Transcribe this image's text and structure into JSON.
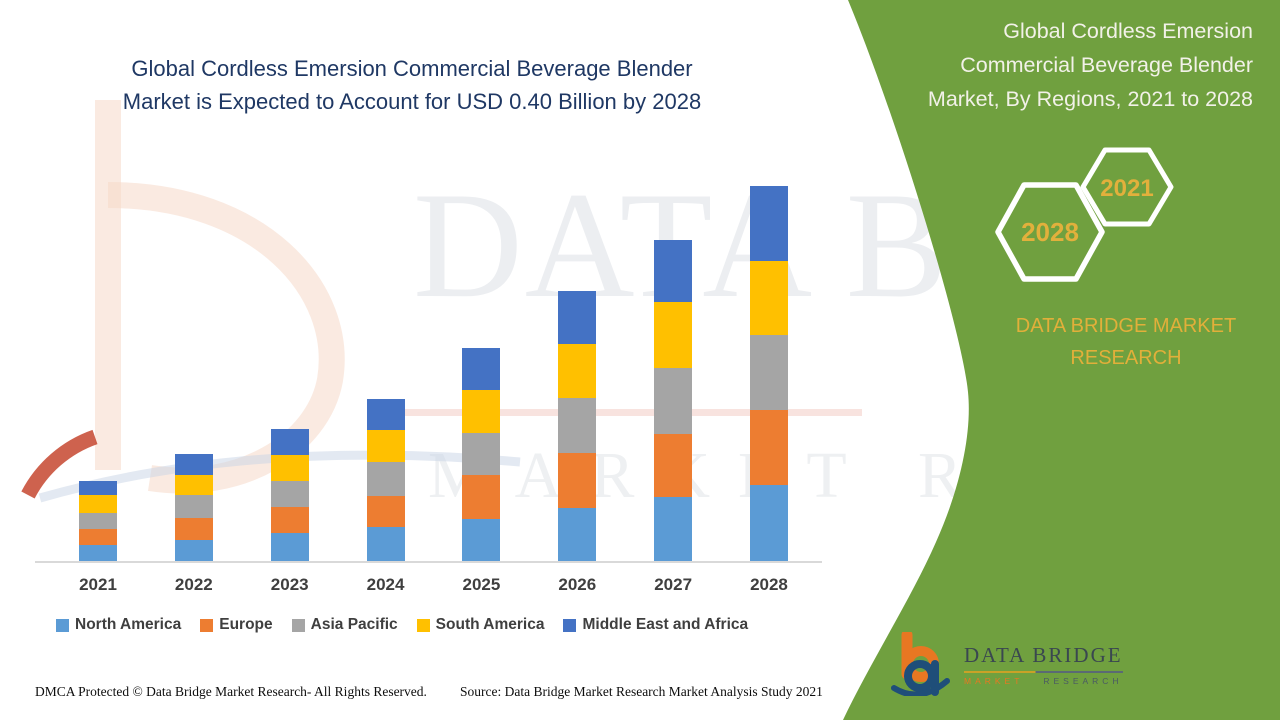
{
  "header": {
    "title_line1": "Global Cordless Emersion Commercial Beverage Blender",
    "title_line2": "Market is Expected to Account for USD 0.40 Billion by 2028"
  },
  "side_panel": {
    "title": "Global Cordless Emersion Commercial Beverage Blender Market, By Regions, 2021 to 2028",
    "hexagons": [
      {
        "label": "2028"
      },
      {
        "label": "2021"
      }
    ],
    "brand": "DATA BRIDGE MARKET RESEARCH",
    "colors": {
      "background": "#70A03F",
      "accent_gold": "#E2B03C",
      "title_text": "#F2F1E8"
    }
  },
  "watermark": {
    "line1": "DATA BRIDGE",
    "line2": "MARKET RESEARCH"
  },
  "chart_data": {
    "type": "bar",
    "stacked": true,
    "title": "Global Cordless Emersion Commercial Beverage Blender Market is Expected to Account for USD 0.40 Billion by 2028",
    "unit": "USD billion",
    "xlabel": "",
    "ylabel": "",
    "categories": [
      "2021",
      "2022",
      "2023",
      "2024",
      "2025",
      "2026",
      "2027",
      "2028"
    ],
    "series": [
      {
        "name": "North America",
        "color": "#5B9BD5",
        "values": [
          0.017,
          0.022,
          0.03,
          0.036,
          0.045,
          0.056,
          0.068,
          0.081
        ]
      },
      {
        "name": "Europe",
        "color": "#ED7D31",
        "values": [
          0.017,
          0.023,
          0.028,
          0.033,
          0.047,
          0.059,
          0.067,
          0.08
        ]
      },
      {
        "name": "Asia Pacific",
        "color": "#A5A5A5",
        "values": [
          0.017,
          0.024,
          0.028,
          0.036,
          0.045,
          0.058,
          0.07,
          0.08
        ]
      },
      {
        "name": "South America",
        "color": "#FFC000",
        "values": [
          0.019,
          0.021,
          0.028,
          0.034,
          0.046,
          0.057,
          0.07,
          0.079
        ]
      },
      {
        "name": "Middle East and Africa",
        "color": "#4472C4",
        "values": [
          0.015,
          0.022,
          0.028,
          0.033,
          0.045,
          0.056,
          0.066,
          0.08
        ]
      }
    ],
    "totals": [
      0.085,
      0.112,
      0.142,
      0.172,
      0.228,
      0.286,
      0.341,
      0.4
    ],
    "ylim": [
      0,
      0.42
    ],
    "grid": false,
    "legend_position": "bottom",
    "axis_color": "#D9D9D9",
    "label_color": "#3F3F3F"
  },
  "footer": {
    "dmca": "DMCA Protected © Data Bridge Market Research- All Rights Reserved.",
    "source": "Source: Data Bridge Market Research Market Analysis Study 2021"
  },
  "logo": {
    "name": "DATA BRIDGE",
    "sub1": "MARKET",
    "sub2": "RESEARCH"
  }
}
